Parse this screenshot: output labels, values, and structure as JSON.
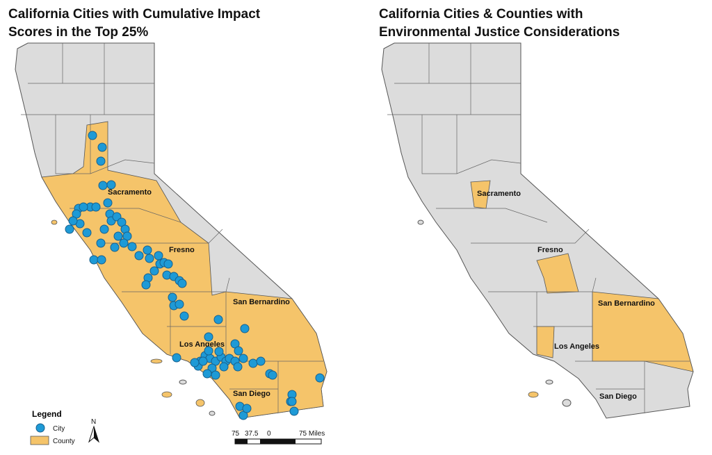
{
  "left_map": {
    "title": "California Cities with Cumulative Impact Scores in the Top 25%",
    "labels": [
      "Sacramento",
      "Fresno",
      "San Bernardino",
      "Los Angeles",
      "San Diego"
    ]
  },
  "right_map": {
    "title": "California Cities & Counties with Environmental Justice Considerations",
    "labels": [
      "Sacramento",
      "Fresno",
      "San Bernardino",
      "Los Angeles",
      "San Diego"
    ]
  },
  "legend": {
    "title": "Legend",
    "items": [
      "City",
      "County"
    ]
  },
  "north": "N",
  "scale_bar": [
    "75",
    "37.5",
    "0",
    "75 Miles"
  ]
}
